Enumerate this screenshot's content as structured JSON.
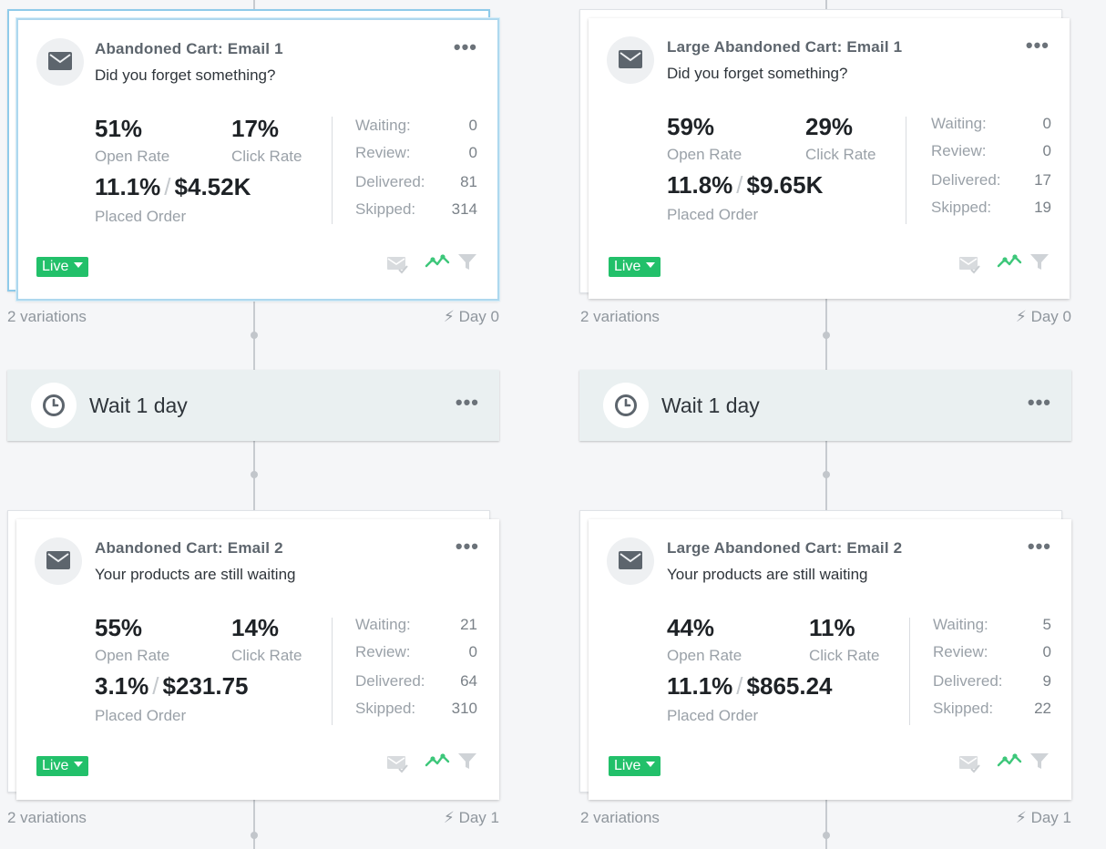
{
  "cards": [
    {
      "title": "Abandoned Cart: Email 1",
      "subject": "Did you forget something?",
      "open_rate": "51%",
      "open_label": "Open Rate",
      "click_rate": "17%",
      "click_label": "Click Rate",
      "order_rate": "11.1%",
      "slash": "/",
      "revenue": "$4.52K",
      "order_label": "Placed Order",
      "waiting_label": "Waiting:",
      "waiting": "0",
      "review_label": "Review:",
      "review": "0",
      "delivered_label": "Delivered:",
      "delivered": "81",
      "skipped_label": "Skipped:",
      "skipped": "314",
      "status": "Live",
      "variations": "2 variations",
      "day": "Day 0"
    },
    {
      "title": "Large Abandoned Cart: Email 1",
      "subject": "Did you forget something?",
      "open_rate": "59%",
      "open_label": "Open Rate",
      "click_rate": "29%",
      "click_label": "Click Rate",
      "order_rate": "11.8%",
      "slash": "/",
      "revenue": "$9.65K",
      "order_label": "Placed Order",
      "waiting_label": "Waiting:",
      "waiting": "0",
      "review_label": "Review:",
      "review": "0",
      "delivered_label": "Delivered:",
      "delivered": "17",
      "skipped_label": "Skipped:",
      "skipped": "19",
      "status": "Live",
      "variations": "2 variations",
      "day": "Day 0"
    },
    {
      "title": "Abandoned Cart: Email 2",
      "subject": "Your products are still waiting",
      "open_rate": "55%",
      "open_label": "Open Rate",
      "click_rate": "14%",
      "click_label": "Click Rate",
      "order_rate": "3.1%",
      "slash": "/",
      "revenue": "$231.75",
      "order_label": "Placed Order",
      "waiting_label": "Waiting:",
      "waiting": "21",
      "review_label": "Review:",
      "review": "0",
      "delivered_label": "Delivered:",
      "delivered": "64",
      "skipped_label": "Skipped:",
      "skipped": "310",
      "status": "Live",
      "variations": "2 variations",
      "day": "Day 1"
    },
    {
      "title": "Large Abandoned Cart: Email 2",
      "subject": "Your products are still waiting",
      "open_rate": "44%",
      "open_label": "Open Rate",
      "click_rate": "11%",
      "click_label": "Click Rate",
      "order_rate": "11.1%",
      "slash": "/",
      "revenue": "$865.24",
      "order_label": "Placed Order",
      "waiting_label": "Waiting:",
      "waiting": "5",
      "review_label": "Review:",
      "review": "0",
      "delivered_label": "Delivered:",
      "delivered": "9",
      "skipped_label": "Skipped:",
      "skipped": "22",
      "status": "Live",
      "variations": "2 variations",
      "day": "Day 1"
    }
  ],
  "waits": [
    {
      "label": "Wait 1 day"
    },
    {
      "label": "Wait 1 day"
    }
  ],
  "menu_glyph": "•••",
  "colors": {
    "live": "#22c06a",
    "accent_border": "#aed8ee",
    "wait_bg": "#eaf0f1"
  },
  "icons": [
    "email-icon",
    "clock-icon",
    "smart-sending-icon",
    "tracking-icon",
    "filter-icon",
    "lightning-icon"
  ]
}
